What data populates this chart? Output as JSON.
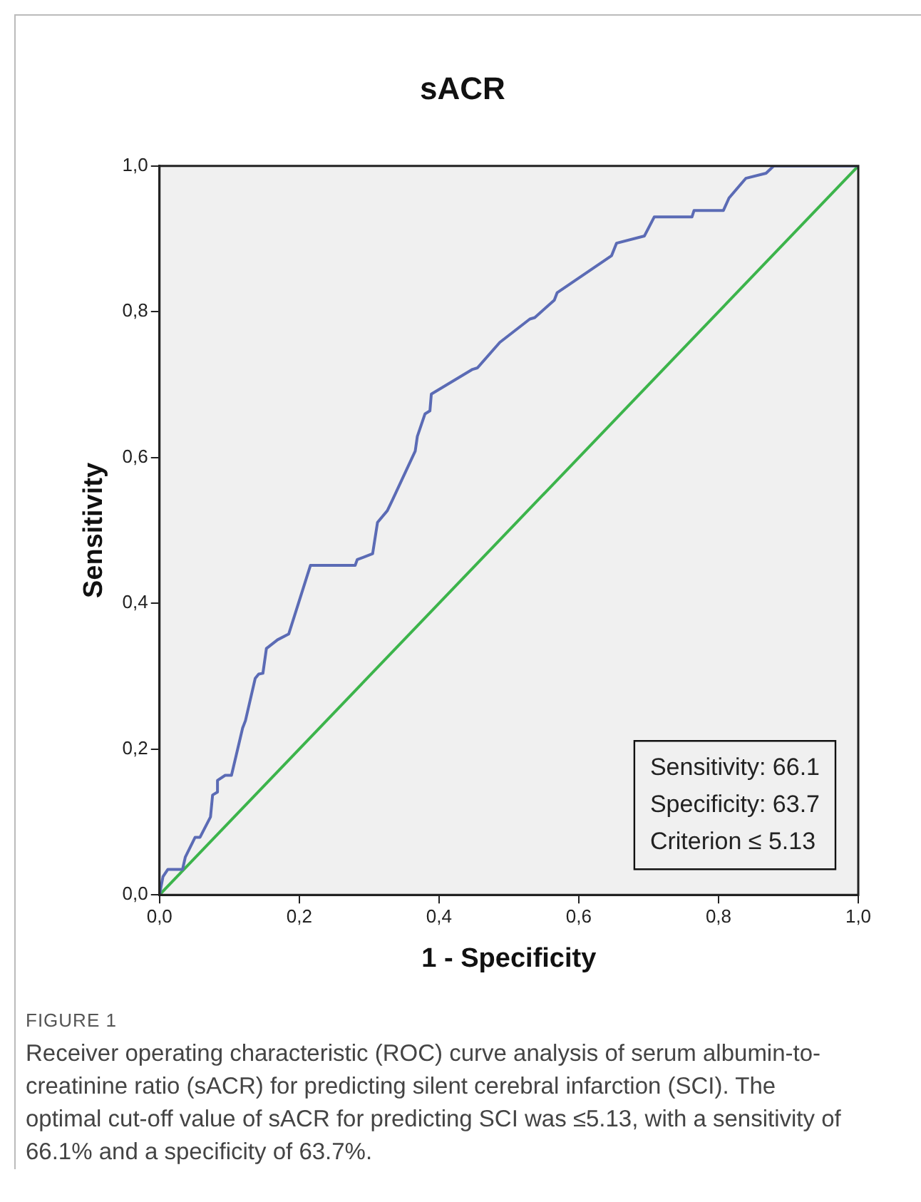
{
  "chart_data": {
    "type": "line",
    "title": "sACR",
    "xlabel": "1 - Specificity",
    "ylabel": "Sensitivity",
    "xlim": [
      0,
      1
    ],
    "ylim": [
      0,
      1
    ],
    "xticks": [
      {
        "value": 0,
        "label": "0,0"
      },
      {
        "value": 0.2,
        "label": "0,2"
      },
      {
        "value": 0.4,
        "label": "0,4"
      },
      {
        "value": 0.6,
        "label": "0,6"
      },
      {
        "value": 0.8,
        "label": "0,8"
      },
      {
        "value": 1,
        "label": "1,0"
      }
    ],
    "yticks": [
      {
        "value": 0,
        "label": "0,0"
      },
      {
        "value": 0.2,
        "label": "0,2"
      },
      {
        "value": 0.4,
        "label": "0,4"
      },
      {
        "value": 0.6,
        "label": "0,6"
      },
      {
        "value": 0.8,
        "label": "0,8"
      },
      {
        "value": 1,
        "label": "1,0"
      }
    ],
    "grid": false,
    "legend": false,
    "marker": "none",
    "line_style": "solid",
    "series": [
      {
        "color": "#5b6bb5",
        "x": [
          0,
          0.005,
          0.012,
          0.033,
          0.037,
          0.051,
          0.058,
          0.073,
          0.076,
          0.083,
          0.083,
          0.094,
          0.103,
          0.119,
          0.123,
          0.137,
          0.142,
          0.148,
          0.153,
          0.169,
          0.185,
          0.216,
          0.28,
          0.283,
          0.305,
          0.312,
          0.326,
          0.333,
          0.366,
          0.369,
          0.38,
          0.387,
          0.389,
          0.448,
          0.455,
          0.487,
          0.53,
          0.537,
          0.565,
          0.569,
          0.647,
          0.654,
          0.694,
          0.708,
          0.762,
          0.765,
          0.807,
          0.815,
          0.839,
          0.868,
          0.879,
          1
        ],
        "values": [
          0,
          0.025,
          0.035,
          0.035,
          0.052,
          0.079,
          0.079,
          0.107,
          0.137,
          0.141,
          0.157,
          0.164,
          0.164,
          0.229,
          0.239,
          0.297,
          0.303,
          0.304,
          0.338,
          0.35,
          0.358,
          0.452,
          0.452,
          0.46,
          0.468,
          0.511,
          0.527,
          0.541,
          0.609,
          0.629,
          0.66,
          0.664,
          0.687,
          0.721,
          0.723,
          0.758,
          0.79,
          0.792,
          0.816,
          0.826,
          0.877,
          0.894,
          0.904,
          0.93,
          0.93,
          0.939,
          0.939,
          0.956,
          0.983,
          0.99,
          1,
          1
        ]
      },
      {
        "color": "#3cb44b",
        "x": [
          0,
          1
        ],
        "values": [
          0,
          1
        ]
      }
    ],
    "annotations": [
      "Sensitivity: 66.1",
      "Specificity: 63.7",
      "Criterion ≤ 5.13",
      "FIGURE 1",
      "Receiver operating characteristic (ROC) curve analysis of serum albumin-to-creatinine ratio (sACR) for predicting silent cerebral infarction (SCI). The optimal cut-off value of sACR for predicting SCI was ≤5.13, with a sensitivity of 66.1% and a specificity of 63.7%."
    ]
  }
}
